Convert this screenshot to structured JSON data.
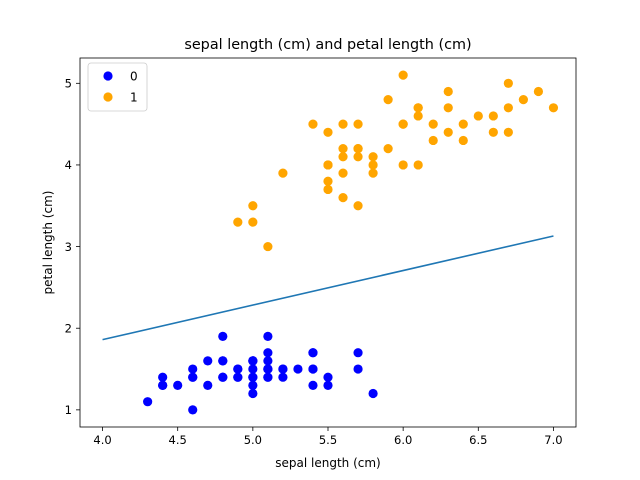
{
  "chart_data": {
    "type": "scatter",
    "title": "sepal length (cm) and petal length (cm)",
    "xlabel": "sepal length (cm)",
    "ylabel": "petal length (cm)",
    "xlim": [
      3.85,
      7.15
    ],
    "ylim": [
      0.79,
      5.31
    ],
    "xticks": [
      4.0,
      4.5,
      5.0,
      5.5,
      6.0,
      6.5,
      7.0
    ],
    "xtick_labels": [
      "4.0",
      "4.5",
      "5.0",
      "5.5",
      "6.0",
      "6.5",
      "7.0"
    ],
    "yticks": [
      1,
      2,
      3,
      4,
      5
    ],
    "ytick_labels": [
      "1",
      "2",
      "3",
      "4",
      "5"
    ],
    "grid": false,
    "legend_position": "top-left",
    "series": [
      {
        "name": "0",
        "color": "#0000ff",
        "points": [
          [
            5.1,
            1.4
          ],
          [
            4.9,
            1.4
          ],
          [
            4.7,
            1.3
          ],
          [
            4.6,
            1.5
          ],
          [
            5.0,
            1.4
          ],
          [
            5.4,
            1.7
          ],
          [
            4.6,
            1.4
          ],
          [
            5.0,
            1.5
          ],
          [
            4.4,
            1.4
          ],
          [
            4.9,
            1.5
          ],
          [
            5.4,
            1.5
          ],
          [
            4.8,
            1.6
          ],
          [
            4.8,
            1.4
          ],
          [
            4.3,
            1.1
          ],
          [
            5.8,
            1.2
          ],
          [
            5.7,
            1.5
          ],
          [
            5.4,
            1.3
          ],
          [
            5.1,
            1.4
          ],
          [
            5.7,
            1.7
          ],
          [
            5.1,
            1.5
          ],
          [
            5.4,
            1.7
          ],
          [
            5.1,
            1.5
          ],
          [
            4.6,
            1.0
          ],
          [
            5.1,
            1.7
          ],
          [
            4.8,
            1.9
          ],
          [
            5.0,
            1.6
          ],
          [
            5.0,
            1.6
          ],
          [
            5.2,
            1.5
          ],
          [
            5.2,
            1.4
          ],
          [
            4.7,
            1.6
          ],
          [
            4.8,
            1.6
          ],
          [
            5.4,
            1.5
          ],
          [
            5.2,
            1.5
          ],
          [
            5.5,
            1.4
          ],
          [
            4.9,
            1.5
          ],
          [
            5.0,
            1.2
          ],
          [
            5.5,
            1.3
          ],
          [
            4.9,
            1.4
          ],
          [
            4.4,
            1.3
          ],
          [
            5.1,
            1.5
          ],
          [
            5.0,
            1.3
          ],
          [
            4.5,
            1.3
          ],
          [
            4.4,
            1.3
          ],
          [
            5.0,
            1.6
          ],
          [
            5.1,
            1.9
          ],
          [
            4.8,
            1.4
          ],
          [
            5.1,
            1.6
          ],
          [
            4.6,
            1.4
          ],
          [
            5.3,
            1.5
          ],
          [
            5.0,
            1.4
          ]
        ]
      },
      {
        "name": "1",
        "color": "#ffa500",
        "points": [
          [
            7.0,
            4.7
          ],
          [
            6.4,
            4.5
          ],
          [
            6.9,
            4.9
          ],
          [
            5.5,
            4.0
          ],
          [
            6.5,
            4.6
          ],
          [
            5.7,
            4.5
          ],
          [
            6.3,
            4.7
          ],
          [
            4.9,
            3.3
          ],
          [
            6.6,
            4.6
          ],
          [
            5.2,
            3.9
          ],
          [
            5.0,
            3.5
          ],
          [
            5.9,
            4.2
          ],
          [
            6.0,
            4.0
          ],
          [
            6.1,
            4.7
          ],
          [
            5.6,
            3.6
          ],
          [
            6.7,
            4.4
          ],
          [
            5.6,
            4.5
          ],
          [
            5.8,
            4.1
          ],
          [
            6.2,
            4.5
          ],
          [
            5.6,
            3.9
          ],
          [
            5.9,
            4.8
          ],
          [
            6.1,
            4.0
          ],
          [
            6.3,
            4.9
          ],
          [
            6.1,
            4.7
          ],
          [
            6.4,
            4.3
          ],
          [
            6.6,
            4.4
          ],
          [
            6.8,
            4.8
          ],
          [
            6.7,
            5.0
          ],
          [
            6.0,
            4.5
          ],
          [
            5.7,
            3.5
          ],
          [
            5.5,
            3.8
          ],
          [
            5.5,
            3.7
          ],
          [
            5.8,
            3.9
          ],
          [
            6.0,
            5.1
          ],
          [
            5.4,
            4.5
          ],
          [
            6.0,
            4.5
          ],
          [
            6.7,
            4.7
          ],
          [
            6.3,
            4.4
          ],
          [
            5.6,
            4.1
          ],
          [
            5.5,
            4.0
          ],
          [
            5.5,
            4.4
          ],
          [
            6.1,
            4.6
          ],
          [
            5.8,
            4.0
          ],
          [
            5.0,
            3.3
          ],
          [
            5.6,
            4.2
          ],
          [
            5.7,
            4.2
          ],
          [
            5.7,
            4.2
          ],
          [
            6.2,
            4.3
          ],
          [
            5.1,
            3.0
          ],
          [
            5.7,
            4.1
          ]
        ]
      }
    ],
    "decision_boundary": {
      "color": "#1f77b4",
      "points": [
        [
          4.0,
          1.86
        ],
        [
          7.0,
          3.13
        ]
      ]
    }
  }
}
